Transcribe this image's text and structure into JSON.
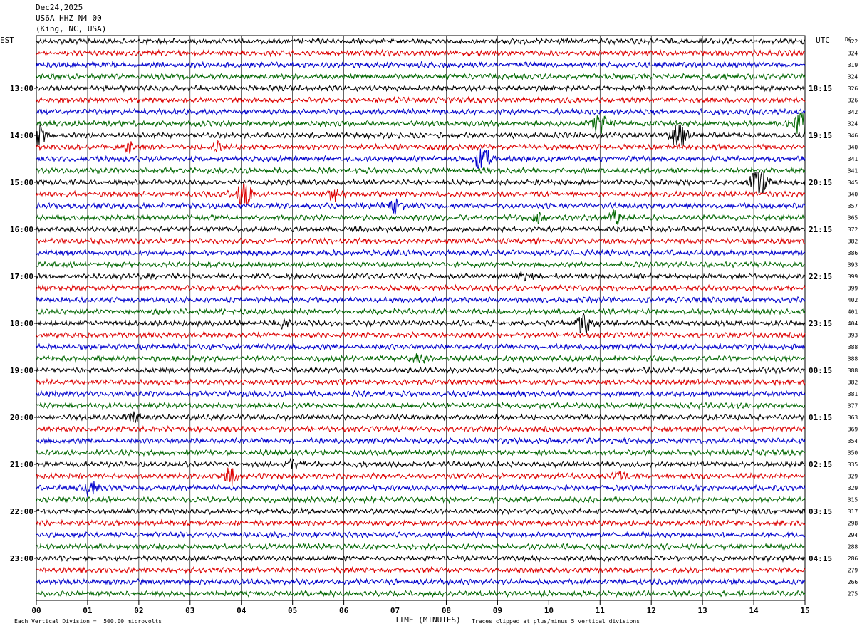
{
  "header": {
    "date": "Dec24,2025",
    "station": "US6A HHZ N4 00",
    "location": "(King, NC, USA)"
  },
  "left_label": "EST",
  "right_label": "UTC",
  "dc_label": "DC",
  "footer": {
    "scale": "Each Vertical Division =  500.00 microvolts",
    "axis_title": "TIME (MINUTES)",
    "clip_note": "Traces clipped at plus/minus 5 vertical divisions"
  },
  "colors": {
    "trace_cycle": [
      "#000000",
      "#dd0000",
      "#0000cc",
      "#006600"
    ],
    "grid": "#000000"
  },
  "chart_data": {
    "type": "line",
    "xlabel": "TIME (MINUTES)",
    "xlim": [
      0,
      15
    ],
    "x_ticks": [
      "00",
      "01",
      "02",
      "03",
      "04",
      "05",
      "06",
      "07",
      "08",
      "09",
      "10",
      "11",
      "12",
      "13",
      "14",
      "15"
    ],
    "trace_interval_minutes": 15,
    "left_hour_labels": [
      "13:00",
      "14:00",
      "15:00",
      "16:00",
      "17:00",
      "18:00",
      "19:00",
      "20:00",
      "21:00",
      "22:00",
      "23:00"
    ],
    "right_hour_labels": [
      "18:15",
      "19:15",
      "20:15",
      "21:15",
      "22:15",
      "23:15",
      "00:15",
      "01:15",
      "02:15",
      "03:15",
      "04:15"
    ],
    "dc_offsets": [
      322,
      324,
      319,
      324,
      326,
      326,
      342,
      324,
      346,
      340,
      341,
      341,
      345,
      340,
      357,
      365,
      372,
      382,
      386,
      393,
      399,
      399,
      402,
      401,
      404,
      393,
      388,
      388,
      388,
      382,
      381,
      377,
      363,
      369,
      354,
      350,
      335,
      329,
      329,
      315,
      317,
      298,
      294,
      288,
      286,
      279,
      266,
      275
    ],
    "events": [
      {
        "trace": 7,
        "minute": 11.0,
        "amp": 2.2
      },
      {
        "trace": 7,
        "minute": 14.95,
        "amp": 2.5
      },
      {
        "trace": 8,
        "minute": 0.05,
        "amp": 2.0
      },
      {
        "trace": 8,
        "minute": 12.55,
        "amp": 2.6
      },
      {
        "trace": 9,
        "minute": 1.8,
        "amp": 0.9
      },
      {
        "trace": 9,
        "minute": 3.5,
        "amp": 0.9
      },
      {
        "trace": 10,
        "minute": 8.7,
        "amp": 2.3
      },
      {
        "trace": 12,
        "minute": 14.1,
        "amp": 3.0
      },
      {
        "trace": 13,
        "minute": 4.05,
        "amp": 2.5
      },
      {
        "trace": 13,
        "minute": 5.8,
        "amp": 0.8
      },
      {
        "trace": 14,
        "minute": 7.0,
        "amp": 1.2
      },
      {
        "trace": 15,
        "minute": 9.8,
        "amp": 1.1
      },
      {
        "trace": 15,
        "minute": 11.3,
        "amp": 1.3
      },
      {
        "trace": 20,
        "minute": 9.55,
        "amp": 0.9
      },
      {
        "trace": 24,
        "minute": 10.7,
        "amp": 2.2
      },
      {
        "trace": 24,
        "minute": 4.8,
        "amp": 0.6
      },
      {
        "trace": 27,
        "minute": 7.5,
        "amp": 0.7
      },
      {
        "trace": 32,
        "minute": 1.9,
        "amp": 0.9
      },
      {
        "trace": 36,
        "minute": 5.0,
        "amp": 0.9
      },
      {
        "trace": 37,
        "minute": 3.8,
        "amp": 1.6
      },
      {
        "trace": 37,
        "minute": 11.4,
        "amp": 0.8
      },
      {
        "trace": 38,
        "minute": 1.05,
        "amp": 1.2
      }
    ]
  }
}
